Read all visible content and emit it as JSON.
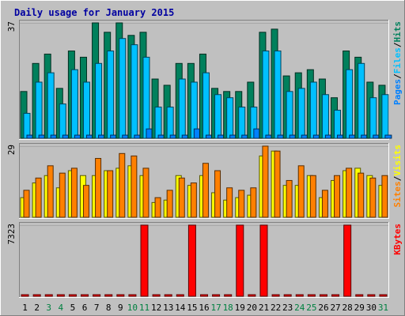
{
  "title": "Daily usage for January 2015",
  "chart_data": [
    {
      "type": "bar",
      "panel": "top",
      "ymax_label": "37",
      "ylim": [
        0,
        37
      ],
      "legend": [
        "Pages",
        "Files",
        "Hits"
      ],
      "legend_seps": [
        "/",
        "/"
      ],
      "colors": {
        "Pages": "#0080ff",
        "Files": "#00c0ff",
        "Hits": "#00805c"
      },
      "categories": [
        "1",
        "2",
        "3",
        "4",
        "5",
        "6",
        "7",
        "8",
        "9",
        "10",
        "11",
        "12",
        "13",
        "14",
        "15",
        "16",
        "17",
        "18",
        "19",
        "20",
        "21",
        "22",
        "23",
        "24",
        "25",
        "26",
        "27",
        "28",
        "29",
        "30",
        "31"
      ],
      "series": [
        {
          "name": "Hits",
          "values": [
            15,
            24,
            27,
            16,
            28,
            26,
            37,
            34,
            37,
            33,
            34,
            19,
            17,
            24,
            24,
            27,
            16,
            15,
            15,
            18,
            34,
            35,
            20,
            21,
            22,
            19,
            13,
            28,
            26,
            18,
            17
          ]
        },
        {
          "name": "Files",
          "values": [
            8,
            18,
            21,
            11,
            22,
            18,
            24,
            28,
            32,
            30,
            26,
            10,
            10,
            19,
            18,
            21,
            14,
            13,
            10,
            10,
            28,
            28,
            15,
            16,
            18,
            14,
            9,
            22,
            24,
            13,
            14
          ]
        },
        {
          "name": "Pages",
          "values": [
            1,
            1,
            1,
            1,
            1,
            1,
            1,
            1,
            1,
            1,
            3,
            1,
            1,
            1,
            3,
            1,
            1,
            1,
            1,
            3,
            1,
            1,
            1,
            1,
            1,
            1,
            1,
            1,
            1,
            1,
            1
          ]
        }
      ]
    },
    {
      "type": "bar",
      "panel": "middle",
      "ymax_label": "29",
      "ylim": [
        0,
        29
      ],
      "legend": [
        "Sites",
        "Visits"
      ],
      "legend_seps": [
        "/"
      ],
      "colors": {
        "Sites": "#ff8000",
        "Visits": "#ffff00"
      },
      "categories": [
        "1",
        "2",
        "3",
        "4",
        "5",
        "6",
        "7",
        "8",
        "9",
        "10",
        "11",
        "12",
        "13",
        "14",
        "15",
        "16",
        "17",
        "18",
        "19",
        "20",
        "21",
        "22",
        "23",
        "24",
        "25",
        "26",
        "27",
        "28",
        "29",
        "30",
        "31"
      ],
      "series": [
        {
          "name": "Visits",
          "values": [
            8,
            14,
            17,
            12,
            19,
            17,
            17,
            19,
            20,
            21,
            17,
            6,
            7,
            17,
            13,
            17,
            10,
            7,
            8,
            9,
            25,
            27,
            13,
            13,
            17,
            8,
            15,
            19,
            20,
            17,
            13
          ]
        },
        {
          "name": "Sites",
          "values": [
            11,
            16,
            21,
            18,
            20,
            13,
            24,
            19,
            26,
            25,
            20,
            8,
            11,
            16,
            14,
            22,
            19,
            12,
            11,
            12,
            29,
            27,
            15,
            21,
            17,
            11,
            17,
            20,
            18,
            16,
            17
          ]
        }
      ]
    },
    {
      "type": "bar",
      "panel": "bottom",
      "ymax_label": "7323",
      "ylim": [
        0,
        7323
      ],
      "legend": [
        "KBytes"
      ],
      "colors": {
        "KBytes": "#ff0000"
      },
      "categories": [
        "1",
        "2",
        "3",
        "4",
        "5",
        "6",
        "7",
        "8",
        "9",
        "10",
        "11",
        "12",
        "13",
        "14",
        "15",
        "16",
        "17",
        "18",
        "19",
        "20",
        "21",
        "22",
        "23",
        "24",
        "25",
        "26",
        "27",
        "28",
        "29",
        "30",
        "31"
      ],
      "series": [
        {
          "name": "KBytes",
          "values": [
            40,
            40,
            40,
            40,
            40,
            40,
            40,
            40,
            150,
            40,
            7323,
            40,
            40,
            100,
            7323,
            40,
            40,
            40,
            7323,
            40,
            7323,
            40,
            40,
            40,
            40,
            40,
            40,
            7323,
            120,
            40,
            40
          ]
        }
      ]
    }
  ],
  "weekend_days": [
    3,
    4,
    10,
    11,
    17,
    18,
    24,
    25,
    31
  ],
  "label_colors": {
    "weekday": "#000000",
    "weekend": "#008040"
  }
}
